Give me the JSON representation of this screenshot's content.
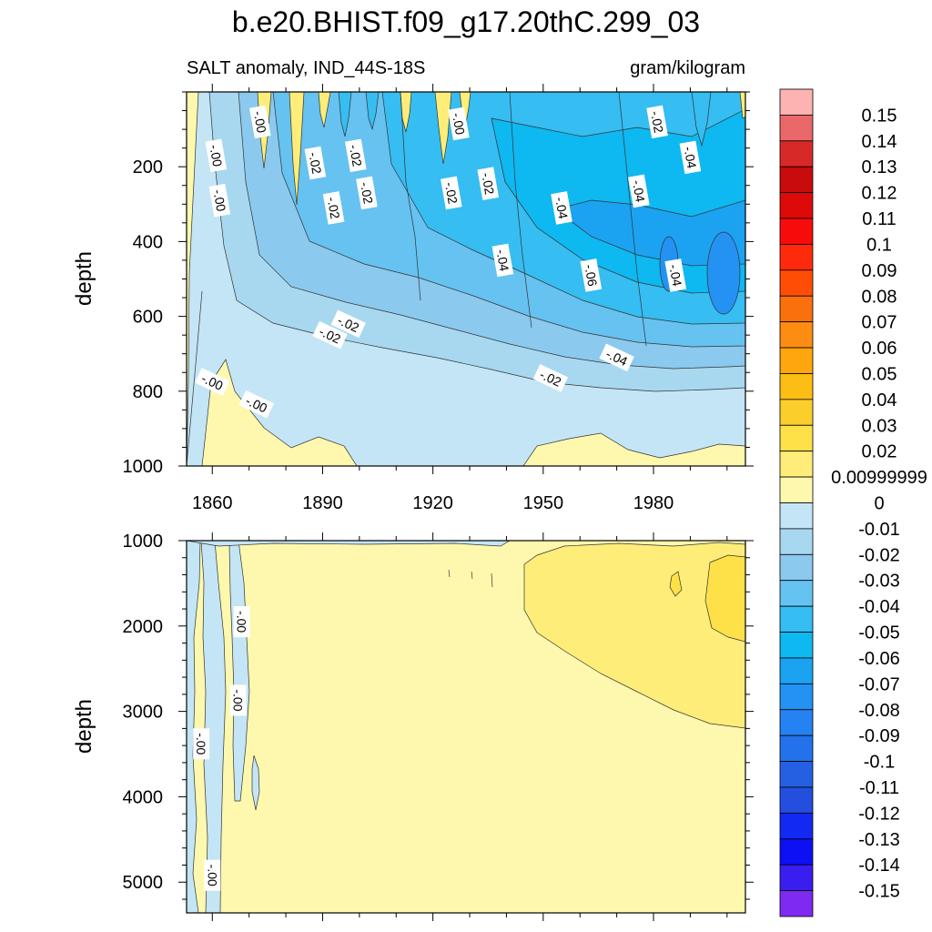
{
  "title": "b.e20.BHIST.f09_g17.20thC.299_03",
  "chart_data": [
    {
      "type": "contour",
      "panel": "upper",
      "subtitle_left": "SALT anomaly, IND_44S-18S",
      "subtitle_right": "gram/kilogram",
      "ylabel": "depth",
      "xlabel": "",
      "xlim": [
        1853,
        2005
      ],
      "ylim": [
        1000,
        0
      ],
      "x_ticks": [
        1860,
        1890,
        1920,
        1950,
        1980
      ],
      "x_tick_labels": [
        "1860",
        "1890",
        "1920",
        "1950",
        "1980"
      ],
      "y_ticks": [
        200,
        400,
        600,
        800,
        1000
      ],
      "y_tick_labels": [
        "200",
        "400",
        "600",
        "800",
        "1000"
      ],
      "contour_labels": [
        {
          "text": "-.00",
          "x": 1873,
          "y": 80
        },
        {
          "text": "-.00",
          "x": 1861,
          "y": 170
        },
        {
          "text": "-.00",
          "x": 1862,
          "y": 290
        },
        {
          "text": "-.02",
          "x": 1888,
          "y": 190
        },
        {
          "text": "-.02",
          "x": 1899,
          "y": 170
        },
        {
          "text": "-.02",
          "x": 1893,
          "y": 310
        },
        {
          "text": "-.02",
          "x": 1902,
          "y": 270
        },
        {
          "text": "-.02",
          "x": 1925,
          "y": 270
        },
        {
          "text": "-.00",
          "x": 1927,
          "y": 85
        },
        {
          "text": "-.02",
          "x": 1935,
          "y": 245
        },
        {
          "text": "-.04",
          "x": 1955,
          "y": 310
        },
        {
          "text": "-.04",
          "x": 1939,
          "y": 450
        },
        {
          "text": "-.04",
          "x": 1976,
          "y": 265
        },
        {
          "text": "-.02",
          "x": 1981,
          "y": 80
        },
        {
          "text": "-.04",
          "x": 1990,
          "y": 175
        },
        {
          "text": "-.06",
          "x": 1963,
          "y": 490
        },
        {
          "text": "-.04",
          "x": 1986,
          "y": 490
        },
        {
          "text": "-.02",
          "x": 1892,
          "y": 650
        },
        {
          "text": "-.02",
          "x": 1897,
          "y": 620
        },
        {
          "text": "-.02",
          "x": 1952,
          "y": 765
        },
        {
          "text": "-.04",
          "x": 1970,
          "y": 710
        },
        {
          "text": "-.00",
          "x": 1860,
          "y": 775
        },
        {
          "text": "-.00",
          "x": 1872,
          "y": 835
        }
      ]
    },
    {
      "type": "contour",
      "panel": "lower",
      "ylabel": "depth",
      "xlim": [
        1853,
        2005
      ],
      "ylim": [
        5360,
        1000
      ],
      "y_ticks": [
        1000,
        2000,
        3000,
        4000,
        5000
      ],
      "y_tick_labels": [
        "1000",
        "2000",
        "3000",
        "4000",
        "5000"
      ],
      "contour_labels": [
        {
          "text": "-.00",
          "x": 1868,
          "y": 1950
        },
        {
          "text": "-.00",
          "x": 1867,
          "y": 2870
        },
        {
          "text": "-.00",
          "x": 1857,
          "y": 3380
        },
        {
          "text": "-.00",
          "x": 1860,
          "y": 4920
        }
      ]
    }
  ],
  "colorbar": {
    "labels": [
      "0.15",
      "0.14",
      "0.13",
      "0.12",
      "0.11",
      "0.1",
      "0.09",
      "0.08",
      "0.07",
      "0.06",
      "0.05",
      "0.04",
      "0.03",
      "0.02",
      "0.00999999",
      "0",
      "-0.01",
      "-0.02",
      "-0.03",
      "-0.04",
      "-0.05",
      "-0.06",
      "-0.07",
      "-0.08",
      "-0.09",
      "-0.1",
      "-0.11",
      "-0.12",
      "-0.13",
      "-0.14",
      "-0.15"
    ],
    "colors": [
      "#FCB3B2",
      "#E9686A",
      "#D82929",
      "#C80B0B",
      "#DE0A0A",
      "#F80B0B",
      "#FF2A0C",
      "#FE4E06",
      "#FA700D",
      "#FC8C12",
      "#FFA60E",
      "#FCBD14",
      "#FCCE2C",
      "#FEE048",
      "#FEED78",
      "#FEF8AE",
      "#C4E5F5",
      "#A8D8F0",
      "#8BC9EE",
      "#66C2F0",
      "#36BDF1",
      "#0EB8F0",
      "#1BA3F2",
      "#2392F3",
      "#2482F2",
      "#2372EB",
      "#2560E3",
      "#234EDE",
      "#1129F3",
      "#0D0FF5",
      "#3A1EEF",
      "#7E2AF0"
    ]
  }
}
